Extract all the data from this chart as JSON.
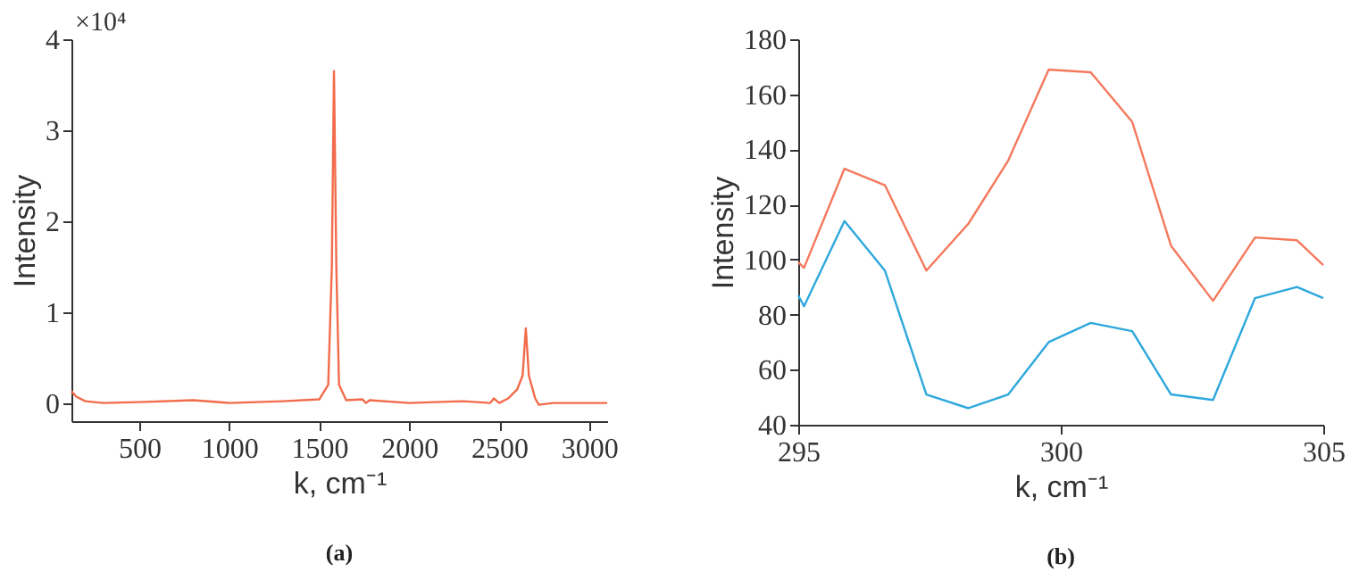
{
  "chart_data": [
    {
      "type": "line",
      "xlabel": "k, cm⁻¹",
      "ylabel": "Intensity",
      "annotations": [
        "×10⁴",
        "(a)"
      ],
      "x": [
        123,
        150,
        200,
        300,
        500,
        800,
        1000,
        1300,
        1500,
        1550,
        1570,
        1582,
        1595,
        1610,
        1650,
        1740,
        1760,
        1780,
        2000,
        2300,
        2450,
        2470,
        2500,
        2550,
        2600,
        2630,
        2648,
        2665,
        2700,
        2720,
        2800,
        3100
      ],
      "series": [
        {
          "color": "#f26b4a",
          "values": [
            0.13,
            0.07,
            0.02,
            0.0,
            0.01,
            0.03,
            0.0,
            0.02,
            0.04,
            0.2,
            1.5,
            3.65,
            1.5,
            0.2,
            0.03,
            0.04,
            0.0,
            0.03,
            0.0,
            0.02,
            0.0,
            0.05,
            0.0,
            0.05,
            0.15,
            0.3,
            0.82,
            0.3,
            0.05,
            -0.02,
            0.0,
            0.0
          ]
        }
      ],
      "xlim": [
        123,
        3100
      ],
      "xticks": [
        500,
        1000,
        1500,
        2000,
        2500,
        3000
      ],
      "ylim": [
        -0.2,
        4
      ],
      "yticks": [
        0,
        1,
        2,
        3,
        4
      ],
      "grid": false,
      "legend": false
    },
    {
      "type": "line",
      "xlabel": "k, cm⁻¹",
      "ylabel": "Intensity",
      "annotations": [
        "(b)"
      ],
      "x": [
        295,
        295.11,
        295.88,
        296.65,
        297.44,
        298.24,
        299.0,
        299.77,
        300.57,
        301.36,
        302.1,
        302.9,
        303.7,
        304.5,
        305
      ],
      "series": [
        {
          "color": "#f4795c",
          "values": [
            99,
            97,
            133,
            127,
            96,
            113,
            136,
            169,
            168,
            150,
            105,
            85,
            108,
            107,
            98
          ]
        },
        {
          "color": "#2ea8dc",
          "values": [
            87,
            83,
            114,
            96,
            51,
            46,
            51,
            70,
            77,
            74,
            51,
            49,
            86,
            90,
            86
          ]
        }
      ],
      "xlim": [
        295,
        305
      ],
      "xticks": [
        295,
        300,
        305
      ],
      "ylim": [
        40,
        180
      ],
      "yticks": [
        40,
        60,
        80,
        100,
        120,
        140,
        160,
        180
      ],
      "grid": false,
      "legend": false
    }
  ]
}
